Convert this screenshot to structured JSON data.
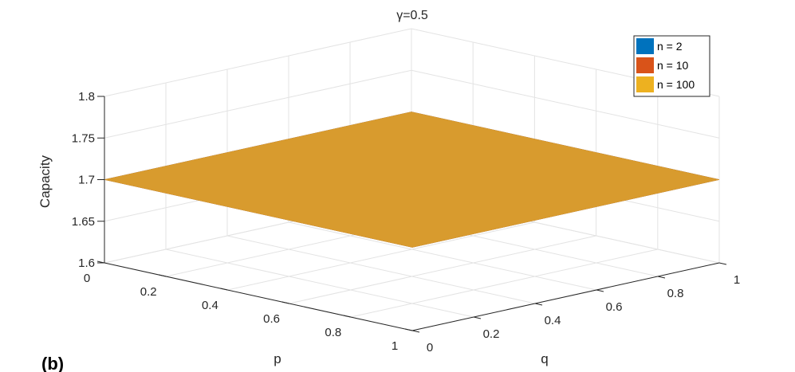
{
  "chart_data": {
    "type": "surface",
    "title": "γ=0.5",
    "panel_label": "(b)",
    "xlabel": "p",
    "ylabel": "q",
    "zlabel": "Capacity",
    "xlim": [
      0,
      1
    ],
    "ylim": [
      0,
      1
    ],
    "zlim": [
      1.6,
      1.8
    ],
    "x_ticks": [
      "0",
      "0.2",
      "0.4",
      "0.6",
      "0.8",
      "1"
    ],
    "y_ticks": [
      "0",
      "0.2",
      "0.4",
      "0.6",
      "0.8",
      "1"
    ],
    "z_ticks": [
      "1.6",
      "1.65",
      "1.7",
      "1.75",
      "1.8"
    ],
    "x_tick_values": [
      0,
      0.2,
      0.4,
      0.6,
      0.8,
      1
    ],
    "y_tick_values": [
      0,
      0.2,
      0.4,
      0.6,
      0.8,
      1
    ],
    "z_tick_values": [
      1.6,
      1.65,
      1.7,
      1.75,
      1.8
    ],
    "grid": true,
    "legend_position": "top-right",
    "series": [
      {
        "name": "n = 2",
        "color": "#0072BD",
        "z_constant": 1.7
      },
      {
        "name": "n = 10",
        "color": "#D95319",
        "z_constant": 1.7
      },
      {
        "name": "n = 100",
        "color": "#EDB120",
        "z_constant": 1.7
      }
    ],
    "visible_surface_color": "#D89B2E",
    "notes_visible": "All three surfaces coincide at Capacity = 1.7; only the n = 100 surface is visible on top."
  }
}
